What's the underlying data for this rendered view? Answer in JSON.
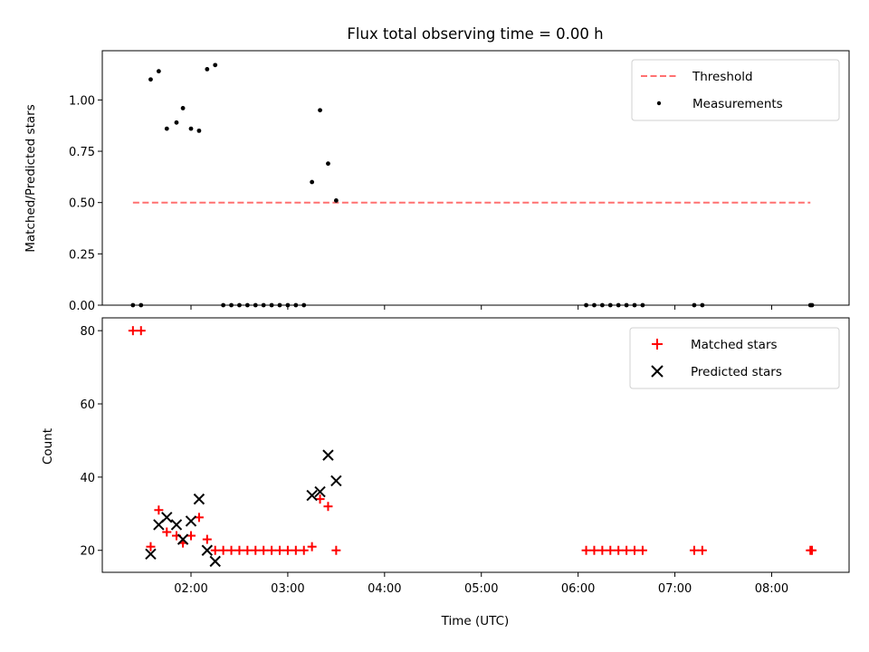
{
  "chart_data": [
    {
      "type": "scatter",
      "panel": "top",
      "title": "Flux total observing time = 0.00 h",
      "xlabel": "",
      "ylabel": "Matched/Predicted stars",
      "ylim": [
        0,
        1.24
      ],
      "yticks": [
        0.0,
        0.25,
        0.5,
        0.75,
        1.0
      ],
      "ytick_labels": [
        "0.00",
        "0.25",
        "0.50",
        "0.75",
        "1.00"
      ],
      "xlim": [
        "01:05",
        "08:48"
      ],
      "xticks": [
        "02:00",
        "03:00",
        "04:00",
        "05:00",
        "06:00",
        "07:00",
        "08:00"
      ],
      "show_xtick_labels": false,
      "legend_position": "upper right",
      "threshold": {
        "name": "Threshold",
        "y": 0.5,
        "x_start": "01:24",
        "x_end": "08:24",
        "color": "#ff7070",
        "style": "dashed"
      },
      "series": [
        {
          "name": "Measurements",
          "color": "#000000",
          "marker": "dot",
          "points": [
            [
              "01:24",
              0.0
            ],
            [
              "01:29",
              0.0
            ],
            [
              "01:35",
              1.1
            ],
            [
              "01:40",
              1.14
            ],
            [
              "01:45",
              0.86
            ],
            [
              "01:51",
              0.89
            ],
            [
              "01:55",
              0.96
            ],
            [
              "02:00",
              0.86
            ],
            [
              "02:05",
              0.85
            ],
            [
              "02:10",
              1.15
            ],
            [
              "02:15",
              1.17
            ],
            [
              "02:20",
              0.0
            ],
            [
              "02:25",
              0.0
            ],
            [
              "02:30",
              0.0
            ],
            [
              "02:35",
              0.0
            ],
            [
              "02:40",
              0.0
            ],
            [
              "02:45",
              0.0
            ],
            [
              "02:50",
              0.0
            ],
            [
              "02:55",
              0.0
            ],
            [
              "03:00",
              0.0
            ],
            [
              "03:05",
              0.0
            ],
            [
              "03:10",
              0.0
            ],
            [
              "03:15",
              0.6
            ],
            [
              "03:20",
              0.95
            ],
            [
              "03:25",
              0.69
            ],
            [
              "03:30",
              0.51
            ],
            [
              "06:05",
              0.0
            ],
            [
              "06:10",
              0.0
            ],
            [
              "06:15",
              0.0
            ],
            [
              "06:20",
              0.0
            ],
            [
              "06:25",
              0.0
            ],
            [
              "06:30",
              0.0
            ],
            [
              "06:35",
              0.0
            ],
            [
              "06:40",
              0.0
            ],
            [
              "07:12",
              0.0
            ],
            [
              "07:17",
              0.0
            ],
            [
              "08:24",
              0.0
            ],
            [
              "08:25",
              0.0
            ]
          ]
        }
      ]
    },
    {
      "type": "scatter",
      "panel": "bottom",
      "title": "",
      "xlabel": "Time (UTC)",
      "ylabel": "Count",
      "ylim": [
        14,
        83.5
      ],
      "yticks": [
        20,
        40,
        60,
        80
      ],
      "ytick_labels": [
        "20",
        "40",
        "60",
        "80"
      ],
      "xlim": [
        "01:05",
        "08:48"
      ],
      "xticks": [
        "02:00",
        "03:00",
        "04:00",
        "05:00",
        "06:00",
        "07:00",
        "08:00"
      ],
      "xtick_labels": [
        "02:00",
        "03:00",
        "04:00",
        "05:00",
        "06:00",
        "07:00",
        "08:00"
      ],
      "legend_position": "upper right",
      "series": [
        {
          "name": "Matched stars",
          "color": "#ff0000",
          "marker": "plus",
          "points": [
            [
              "01:24",
              80
            ],
            [
              "01:29",
              80
            ],
            [
              "01:35",
              21
            ],
            [
              "01:40",
              31
            ],
            [
              "01:45",
              25
            ],
            [
              "01:51",
              24
            ],
            [
              "01:55",
              22
            ],
            [
              "02:00",
              24
            ],
            [
              "02:05",
              29
            ],
            [
              "02:10",
              23
            ],
            [
              "02:15",
              20
            ],
            [
              "02:20",
              20
            ],
            [
              "02:25",
              20
            ],
            [
              "02:30",
              20
            ],
            [
              "02:35",
              20
            ],
            [
              "02:40",
              20
            ],
            [
              "02:45",
              20
            ],
            [
              "02:50",
              20
            ],
            [
              "02:55",
              20
            ],
            [
              "03:00",
              20
            ],
            [
              "03:05",
              20
            ],
            [
              "03:10",
              20
            ],
            [
              "03:15",
              21
            ],
            [
              "03:20",
              34
            ],
            [
              "03:25",
              32
            ],
            [
              "03:30",
              20
            ],
            [
              "06:05",
              20
            ],
            [
              "06:10",
              20
            ],
            [
              "06:15",
              20
            ],
            [
              "06:20",
              20
            ],
            [
              "06:25",
              20
            ],
            [
              "06:30",
              20
            ],
            [
              "06:35",
              20
            ],
            [
              "06:40",
              20
            ],
            [
              "07:12",
              20
            ],
            [
              "07:17",
              20
            ],
            [
              "08:24",
              20
            ],
            [
              "08:25",
              20
            ]
          ]
        },
        {
          "name": "Predicted stars",
          "color": "#000000",
          "marker": "x",
          "points": [
            [
              "01:35",
              19
            ],
            [
              "01:40",
              27
            ],
            [
              "01:45",
              29
            ],
            [
              "01:51",
              27
            ],
            [
              "01:55",
              23
            ],
            [
              "02:00",
              28
            ],
            [
              "02:05",
              34
            ],
            [
              "02:10",
              20
            ],
            [
              "02:15",
              17
            ],
            [
              "03:15",
              35
            ],
            [
              "03:20",
              36
            ],
            [
              "03:25",
              46
            ],
            [
              "03:30",
              39
            ]
          ]
        }
      ]
    }
  ]
}
